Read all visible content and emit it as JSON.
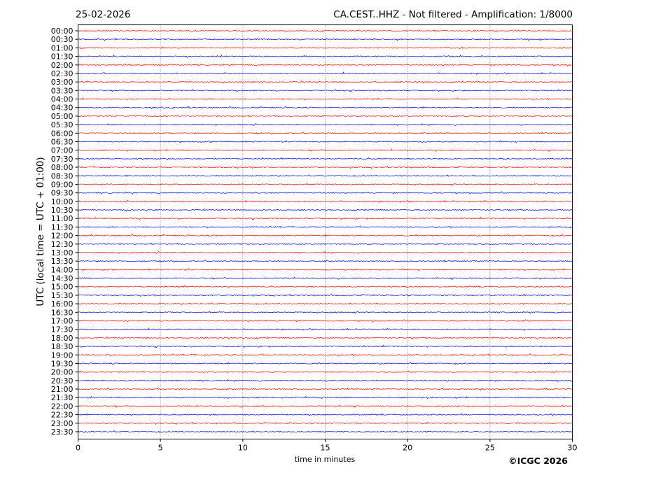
{
  "header": {
    "date": "25-02-2026",
    "title": "CA.CEST..HHZ - Not filtered - Amplification: 1/8000"
  },
  "copyright": "©ICGC 2026",
  "chart_data": {
    "type": "line",
    "title": "CA.CEST..HHZ - Not filtered - Amplification: 1/8000",
    "xlabel": "time in minutes",
    "ylabel": "UTC (local time = UTC + 01:00)",
    "xlim": [
      0,
      30
    ],
    "x_ticks": [
      "0",
      "5",
      "10",
      "15",
      "20",
      "25",
      "30"
    ],
    "x_tick_values": [
      0,
      5,
      10,
      15,
      20,
      25,
      30
    ],
    "grid": "vertical dotted at x ticks",
    "row_labels": [
      "00:00",
      "00:30",
      "01:00",
      "01:30",
      "02:00",
      "02:30",
      "03:00",
      "03:30",
      "04:00",
      "04:30",
      "05:00",
      "05:30",
      "06:00",
      "06:30",
      "07:00",
      "07:30",
      "08:00",
      "08:30",
      "09:00",
      "09:30",
      "10:00",
      "10:30",
      "11:00",
      "11:30",
      "12:00",
      "12:30",
      "13:00",
      "13:30",
      "14:00",
      "14:30",
      "15:00",
      "15:30",
      "16:00",
      "16:30",
      "17:00",
      "17:30",
      "18:00",
      "18:30",
      "19:00",
      "19:30",
      "20:00",
      "20:30",
      "21:00",
      "21:30",
      "22:00",
      "22:30",
      "23:00",
      "23:30"
    ],
    "trace_colors": [
      "#ff0000",
      "#0000ff"
    ],
    "signal": "low-amplitude background noise on every row"
  }
}
